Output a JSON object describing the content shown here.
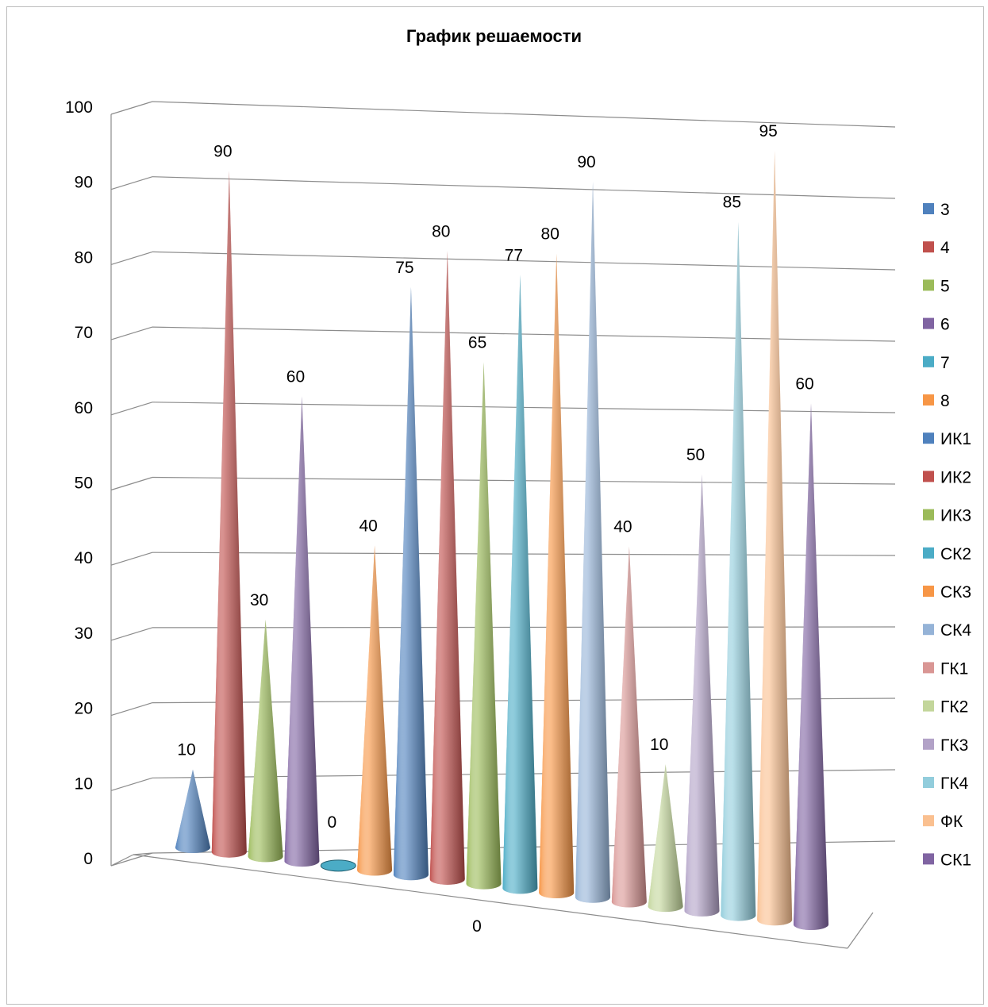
{
  "chart_data": {
    "type": "bar",
    "style": "3d-cone",
    "title": "График решаемости",
    "category_label": "0",
    "yticks": [
      "0",
      "10",
      "20",
      "30",
      "40",
      "50",
      "60",
      "70",
      "80",
      "90",
      "100"
    ],
    "ylim": [
      0,
      100
    ],
    "grid": true,
    "legend_position": "right",
    "series": [
      {
        "name": "3",
        "value": 10,
        "color": "#4F81BD"
      },
      {
        "name": "4",
        "value": 90,
        "color": "#C0504D"
      },
      {
        "name": "5",
        "value": 30,
        "color": "#9BBB59"
      },
      {
        "name": "6",
        "value": 60,
        "color": "#8064A2"
      },
      {
        "name": "7",
        "value": 0,
        "color": "#4BACC6"
      },
      {
        "name": "8",
        "value": 40,
        "color": "#F79646"
      },
      {
        "name": "ИК1",
        "value": 75,
        "color": "#4F81BD"
      },
      {
        "name": "ИК2",
        "value": 80,
        "color": "#C0504D"
      },
      {
        "name": "ИК3",
        "value": 65,
        "color": "#9BBB59"
      },
      {
        "name": "СК2",
        "value": 77,
        "color": "#4BACC6"
      },
      {
        "name": "СК3",
        "value": 80,
        "color": "#F79646"
      },
      {
        "name": "СК4",
        "value": 90,
        "color": "#95B3D7"
      },
      {
        "name": "ГК1",
        "value": 40,
        "color": "#D99694"
      },
      {
        "name": "ГК2",
        "value": 10,
        "color": "#C3D69B"
      },
      {
        "name": "ГК3",
        "value": 50,
        "color": "#B2A2C7"
      },
      {
        "name": "ГК4",
        "value": 85,
        "color": "#92CDDC"
      },
      {
        "name": "ФК",
        "value": 95,
        "color": "#FAC090"
      },
      {
        "name": "СК1",
        "value": 60,
        "color": "#8064A2"
      }
    ]
  }
}
